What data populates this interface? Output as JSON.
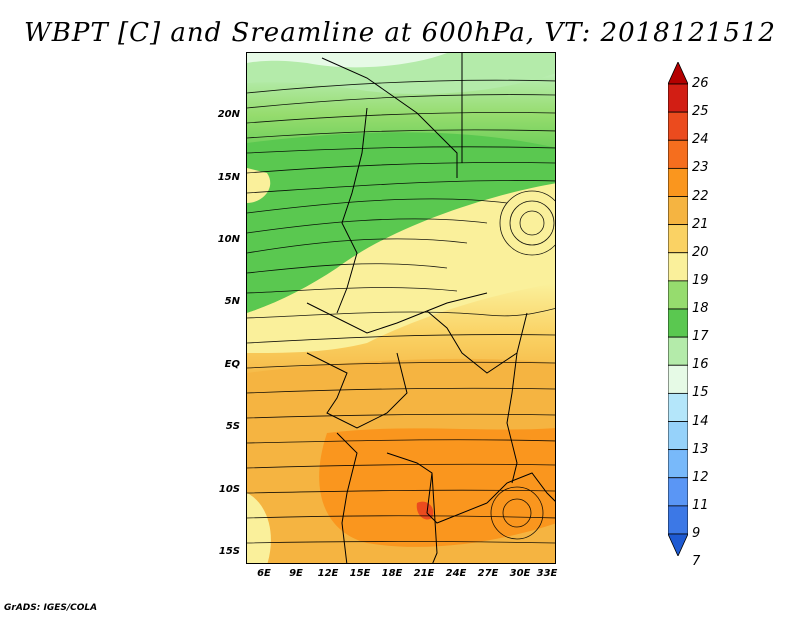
{
  "title": "WBPT [C] and Sreamline at 600hPa, VT: 2018121512",
  "footer": "GrADS: IGES/COLA",
  "lat_labels": [
    "20N",
    "15N",
    "10N",
    "5N",
    "EQ",
    "5S",
    "10S",
    "15S"
  ],
  "lon_labels": [
    "6E",
    "9E",
    "12E",
    "15E",
    "18E",
    "21E",
    "24E",
    "27E",
    "30E",
    "33E"
  ],
  "colorbar": {
    "levels": [
      "26",
      "25",
      "24",
      "23",
      "22",
      "21",
      "20",
      "19",
      "18",
      "17",
      "16",
      "15",
      "14",
      "13",
      "12",
      "11",
      "9",
      "7"
    ],
    "colors": [
      "#b40000",
      "#d21e14",
      "#eb4b1e",
      "#f56e1e",
      "#fa961e",
      "#f5b441",
      "#fad264",
      "#faf09b",
      "#96dc6e",
      "#5ac850",
      "#b4ebaa",
      "#e6fae6",
      "#b4e6fa",
      "#96d2fa",
      "#78b9fa",
      "#5a96f5",
      "#3c78e6",
      "#1e5ad2"
    ]
  }
}
